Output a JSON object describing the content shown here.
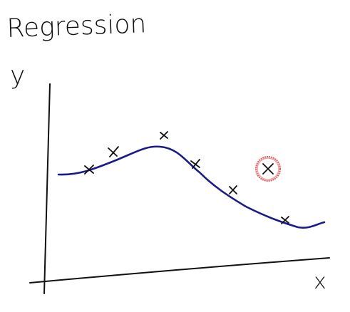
{
  "title": "Regression",
  "y_axis_label": "y",
  "x_axis_label": "x"
}
